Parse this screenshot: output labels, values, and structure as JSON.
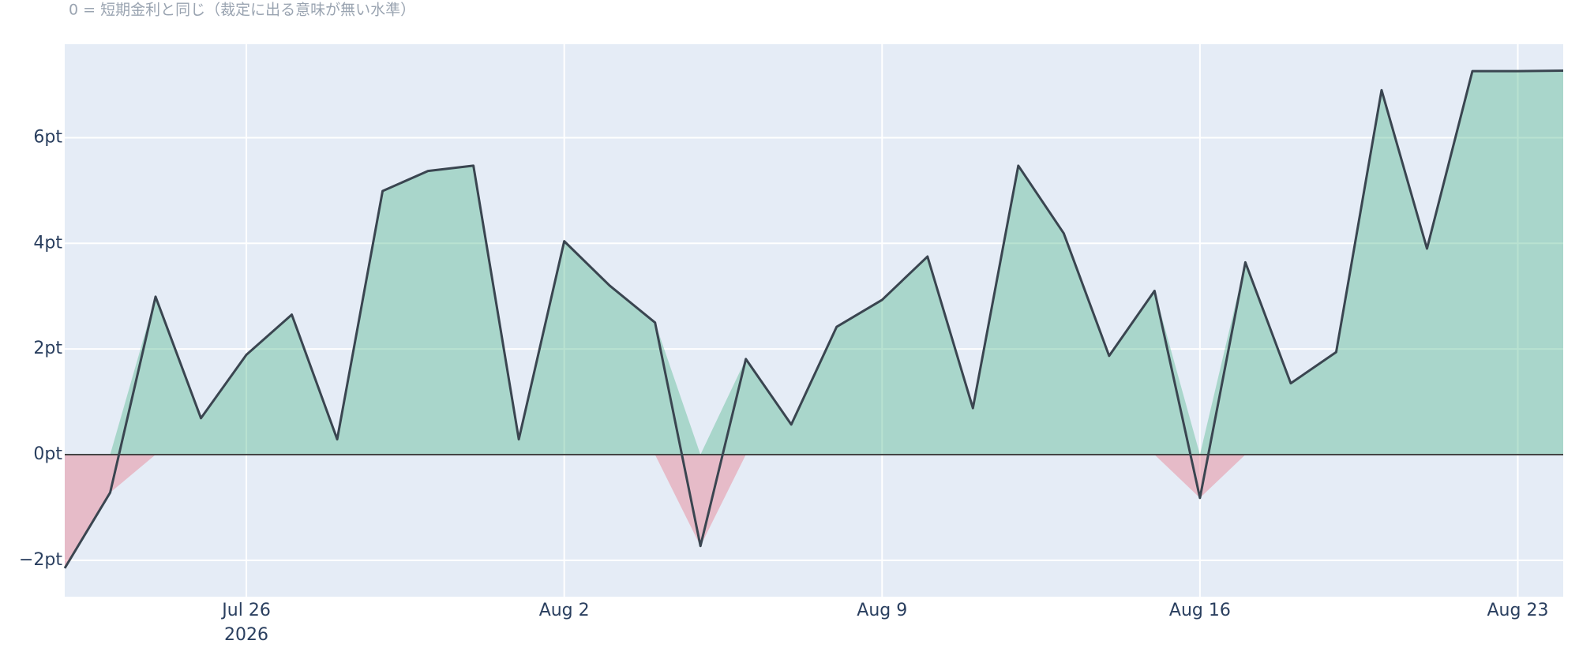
{
  "chart_data": {
    "type": "area",
    "subtitle": "0 = 短期金利と同じ（裁定に出る意味が無い水準）",
    "x": [
      "2026-07-22",
      "2026-07-23",
      "2026-07-24",
      "2026-07-25",
      "2026-07-26",
      "2026-07-27",
      "2026-07-28",
      "2026-07-29",
      "2026-07-30",
      "2026-07-31",
      "2026-08-01",
      "2026-08-02",
      "2026-08-03",
      "2026-08-04",
      "2026-08-05",
      "2026-08-06",
      "2026-08-07",
      "2026-08-08",
      "2026-08-09",
      "2026-08-10",
      "2026-08-11",
      "2026-08-12",
      "2026-08-13",
      "2026-08-14",
      "2026-08-15",
      "2026-08-16",
      "2026-08-17",
      "2026-08-18",
      "2026-08-19",
      "2026-08-20",
      "2026-08-21",
      "2026-08-22",
      "2026-08-23",
      "2026-08-24"
    ],
    "values": [
      -2.15,
      -0.72,
      2.99,
      0.69,
      1.89,
      2.65,
      0.29,
      4.99,
      5.37,
      5.47,
      0.29,
      4.04,
      3.2,
      2.5,
      -1.73,
      1.81,
      0.57,
      2.42,
      2.93,
      3.75,
      0.88,
      5.47,
      4.19,
      1.87,
      3.1,
      -0.82,
      3.64,
      1.35,
      1.94,
      6.9,
      3.9,
      7.26,
      7.26,
      7.27
    ],
    "color": "#3a4550",
    "positive_fill_color": "rgba(70,180,135,0.38)",
    "negative_fill_color": "rgba(230,120,135,0.42)",
    "xlim": [
      "2026-07-22",
      "2026-08-24"
    ],
    "xticks": [
      {
        "value": "2026-07-26",
        "label": "Jul 26"
      },
      {
        "value": "2026-08-02",
        "label": "Aug 2"
      },
      {
        "value": "2026-08-09",
        "label": "Aug 9"
      },
      {
        "value": "2026-08-16",
        "label": "Aug 16"
      },
      {
        "value": "2026-08-23",
        "label": "Aug 23"
      }
    ],
    "x_year_label": "2026",
    "ylim": [
      -2.69,
      7.77
    ],
    "yticks": [
      {
        "value": -2,
        "label": "−2pt"
      },
      {
        "value": 0,
        "label": "0pt"
      },
      {
        "value": 2,
        "label": "2pt"
      },
      {
        "value": 4,
        "label": "4pt"
      },
      {
        "value": 6,
        "label": "6pt"
      }
    ],
    "grid": true
  }
}
